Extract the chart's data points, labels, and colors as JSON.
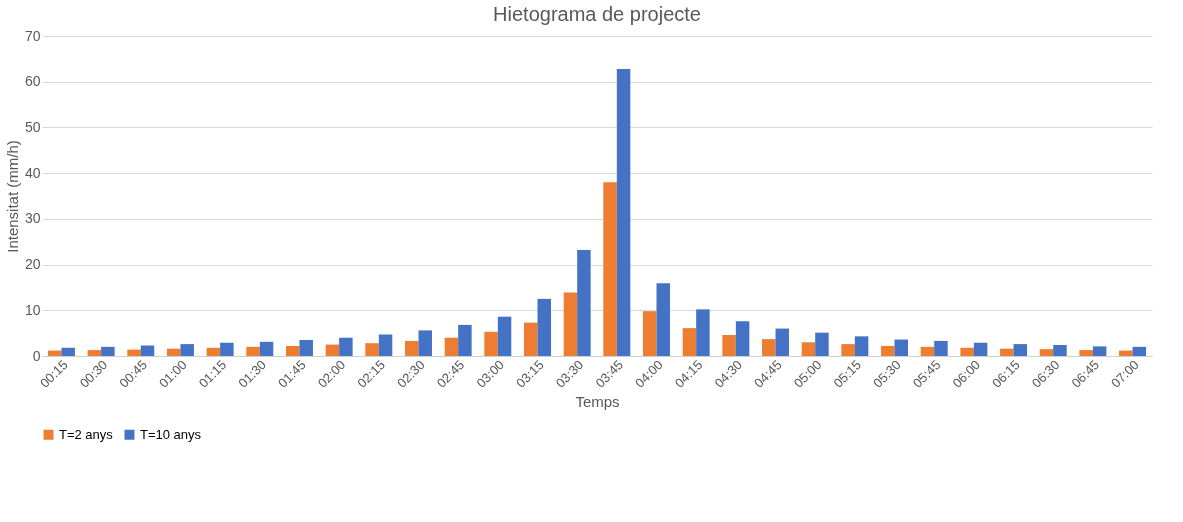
{
  "chart_data": {
    "type": "bar",
    "title": "Hietograma de projecte",
    "xlabel": "Temps",
    "ylabel": "Intensitat (mm/h)",
    "categories": [
      "00:15",
      "00:30",
      "00:45",
      "01:00",
      "01:15",
      "01:30",
      "01:45",
      "02:00",
      "02:15",
      "02:30",
      "02:45",
      "03:00",
      "03:15",
      "03:30",
      "03:45",
      "04:00",
      "04:15",
      "04:30",
      "04:45",
      "05:00",
      "05:15",
      "05:30",
      "05:45",
      "06:00",
      "06:15",
      "06:30",
      "06:45",
      "07:00"
    ],
    "series": [
      {
        "name": "T=2 anys",
        "color": "#ed7d31",
        "values": [
          1.2,
          1.3,
          1.4,
          1.6,
          1.8,
          2.0,
          2.2,
          2.5,
          2.8,
          3.3,
          4.0,
          5.3,
          7.3,
          13.9,
          38.0,
          9.8,
          6.1,
          4.6,
          3.7,
          3.0,
          2.6,
          2.2,
          2.0,
          1.8,
          1.6,
          1.5,
          1.3,
          1.2
        ]
      },
      {
        "name": "T=10 anys",
        "color": "#4472c4",
        "values": [
          1.8,
          2.0,
          2.3,
          2.6,
          2.9,
          3.1,
          3.5,
          4.0,
          4.7,
          5.6,
          6.8,
          8.6,
          12.5,
          23.2,
          62.8,
          15.9,
          10.2,
          7.6,
          6.0,
          5.1,
          4.3,
          3.6,
          3.3,
          2.9,
          2.6,
          2.4,
          2.1,
          2.0
        ]
      }
    ],
    "ylim": [
      0,
      70
    ],
    "yticks": [
      0,
      10,
      20,
      30,
      40,
      50,
      60,
      70
    ],
    "grid": "y",
    "legend": "bottom"
  }
}
